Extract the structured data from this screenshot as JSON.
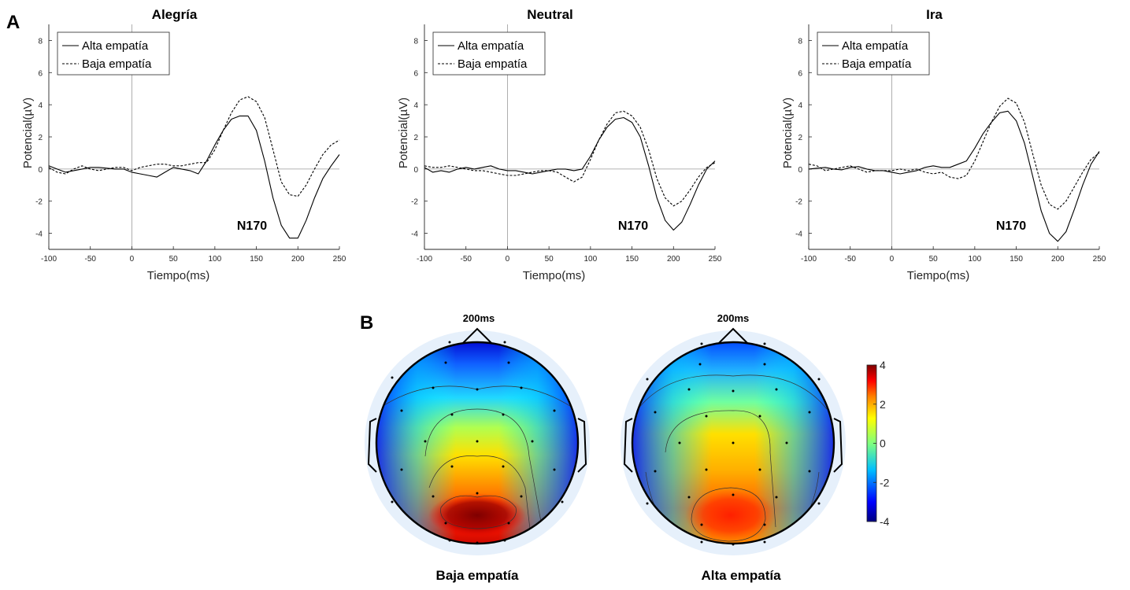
{
  "panel_labels": {
    "a": "A",
    "b": "B"
  },
  "colors": {
    "axis": "#262626",
    "zero_line": "#9a9a9a",
    "trace": "#000000"
  },
  "colormap": [
    "#00007f",
    "#0000ff",
    "#007fff",
    "#00ffff",
    "#7fff7f",
    "#ffff00",
    "#ff7f00",
    "#ff0000",
    "#7f0000"
  ],
  "chart_data": [
    {
      "type": "line",
      "title": "Alegría",
      "xlabel": "Tiempo(ms)",
      "ylabel": "Potencial(µV)",
      "xlim": [
        -100,
        250
      ],
      "ylim": [
        -5,
        9
      ],
      "xticks": [
        -100,
        -50,
        0,
        50,
        100,
        150,
        200,
        250
      ],
      "yticks": [
        -4,
        -2,
        0,
        2,
        4,
        6,
        8
      ],
      "annotation": "N170",
      "legend": "top-left",
      "x": [
        -100,
        -90,
        -80,
        -70,
        -60,
        -50,
        -40,
        -30,
        -20,
        -10,
        0,
        10,
        20,
        30,
        40,
        50,
        60,
        70,
        80,
        90,
        100,
        110,
        120,
        130,
        140,
        150,
        160,
        170,
        180,
        190,
        200,
        210,
        220,
        230,
        240,
        250
      ],
      "series": [
        {
          "name": "Alta empatía",
          "style": "solid",
          "values": [
            0.2,
            0,
            -0.2,
            -0.1,
            0,
            0.1,
            0.1,
            0.05,
            0,
            0,
            -0.2,
            -0.3,
            -0.4,
            -0.5,
            -0.2,
            0.1,
            0,
            -0.1,
            -0.3,
            0.5,
            1.5,
            2.4,
            3.1,
            3.3,
            3.3,
            2.4,
            0.5,
            -1.8,
            -3.5,
            -4.3,
            -4.3,
            -3.2,
            -1.8,
            -0.6,
            0.2,
            0.9
          ]
        },
        {
          "name": "Baja empatía",
          "style": "dashed",
          "values": [
            0.1,
            -0.2,
            -0.3,
            0,
            0.2,
            0,
            -0.1,
            0,
            0.1,
            0.1,
            -0.1,
            0.1,
            0.2,
            0.3,
            0.3,
            0.2,
            0.2,
            0.3,
            0.4,
            0.4,
            1.2,
            2.4,
            3.5,
            4.3,
            4.5,
            4.2,
            3.2,
            1.2,
            -0.8,
            -1.6,
            -1.7,
            -1.0,
            0.0,
            0.9,
            1.5,
            1.8
          ]
        }
      ]
    },
    {
      "type": "line",
      "title": "Neutral",
      "xlabel": "Tiempo(ms)",
      "ylabel": "Potencial(µV)",
      "xlim": [
        -100,
        250
      ],
      "ylim": [
        -5,
        9
      ],
      "xticks": [
        -100,
        -50,
        0,
        50,
        100,
        150,
        200,
        250
      ],
      "yticks": [
        -4,
        -2,
        0,
        2,
        4,
        6,
        8
      ],
      "annotation": "N170",
      "legend": "top-left",
      "x": [
        -100,
        -90,
        -80,
        -70,
        -60,
        -50,
        -40,
        -30,
        -20,
        -10,
        0,
        10,
        20,
        30,
        40,
        50,
        60,
        70,
        80,
        90,
        100,
        110,
        120,
        130,
        140,
        150,
        160,
        170,
        180,
        190,
        200,
        210,
        220,
        230,
        240,
        250
      ],
      "series": [
        {
          "name": "Alta empatía",
          "style": "solid",
          "values": [
            0.1,
            -0.2,
            -0.1,
            -0.2,
            0,
            0.1,
            0,
            0.1,
            0.2,
            0,
            -0.1,
            -0.1,
            -0.2,
            -0.3,
            -0.2,
            -0.1,
            0,
            0,
            -0.1,
            0,
            0.8,
            1.8,
            2.6,
            3.1,
            3.2,
            2.9,
            2.0,
            0.2,
            -1.8,
            -3.2,
            -3.8,
            -3.3,
            -2.2,
            -1.0,
            0,
            0.5
          ]
        },
        {
          "name": "Baja empatía",
          "style": "dashed",
          "values": [
            0.2,
            0.1,
            0.1,
            0.2,
            0.1,
            0,
            -0.1,
            -0.1,
            -0.2,
            -0.3,
            -0.4,
            -0.4,
            -0.3,
            -0.2,
            -0.1,
            -0.1,
            -0.2,
            -0.5,
            -0.8,
            -0.5,
            0.6,
            1.8,
            2.8,
            3.5,
            3.6,
            3.3,
            2.6,
            1.2,
            -0.6,
            -1.8,
            -2.3,
            -2.0,
            -1.3,
            -0.5,
            0.1,
            0.4
          ]
        }
      ]
    },
    {
      "type": "line",
      "title": "Ira",
      "xlabel": "Tiempo(ms)",
      "ylabel": "Potencial(µV)",
      "xlim": [
        -100,
        250
      ],
      "ylim": [
        -5,
        9
      ],
      "xticks": [
        -100,
        -50,
        0,
        50,
        100,
        150,
        200,
        250
      ],
      "yticks": [
        -4,
        -2,
        0,
        2,
        4,
        6,
        8
      ],
      "annotation": "N170",
      "legend": "top-left",
      "x": [
        -100,
        -90,
        -80,
        -70,
        -60,
        -50,
        -40,
        -30,
        -20,
        -10,
        0,
        10,
        20,
        30,
        40,
        50,
        60,
        70,
        80,
        90,
        100,
        110,
        120,
        130,
        140,
        150,
        160,
        170,
        180,
        190,
        200,
        210,
        220,
        230,
        240,
        250
      ],
      "series": [
        {
          "name": "Alta empatía",
          "style": "solid",
          "values": [
            0,
            0.05,
            0.1,
            0,
            -0.05,
            0.1,
            0.15,
            0,
            -0.1,
            -0.1,
            -0.2,
            -0.3,
            -0.2,
            -0.1,
            0.1,
            0.2,
            0.1,
            0.1,
            0.3,
            0.5,
            1.3,
            2.2,
            2.9,
            3.5,
            3.6,
            3.0,
            1.6,
            -0.5,
            -2.6,
            -4.0,
            -4.5,
            -3.9,
            -2.5,
            -1.0,
            0.3,
            1.1
          ]
        },
        {
          "name": "Baja empatía",
          "style": "dashed",
          "values": [
            0.3,
            0.2,
            -0.1,
            0,
            0.1,
            0.2,
            0,
            -0.2,
            -0.1,
            -0.1,
            -0.1,
            0,
            -0.1,
            0,
            -0.2,
            -0.3,
            -0.2,
            -0.5,
            -0.6,
            -0.4,
            0.5,
            1.7,
            2.9,
            3.9,
            4.4,
            4.1,
            2.9,
            0.9,
            -1.0,
            -2.2,
            -2.5,
            -2.0,
            -1.1,
            -0.2,
            0.6,
            1.0
          ]
        }
      ]
    },
    {
      "type": "heatmap",
      "subtype": "scalp-topography",
      "time_label": "200ms",
      "caption": "Baja empatía",
      "description_values": {
        "front": -4,
        "center": 1,
        "posterior_peak": 4
      }
    },
    {
      "type": "heatmap",
      "subtype": "scalp-topography",
      "time_label": "200ms",
      "caption": "Alta empatía",
      "description_values": {
        "front": -3,
        "center": 1.5,
        "posterior_peak": 3.2
      }
    }
  ],
  "colorbar": {
    "min": -4,
    "max": 4,
    "ticks": [
      4,
      2,
      0,
      -2,
      -4
    ]
  }
}
